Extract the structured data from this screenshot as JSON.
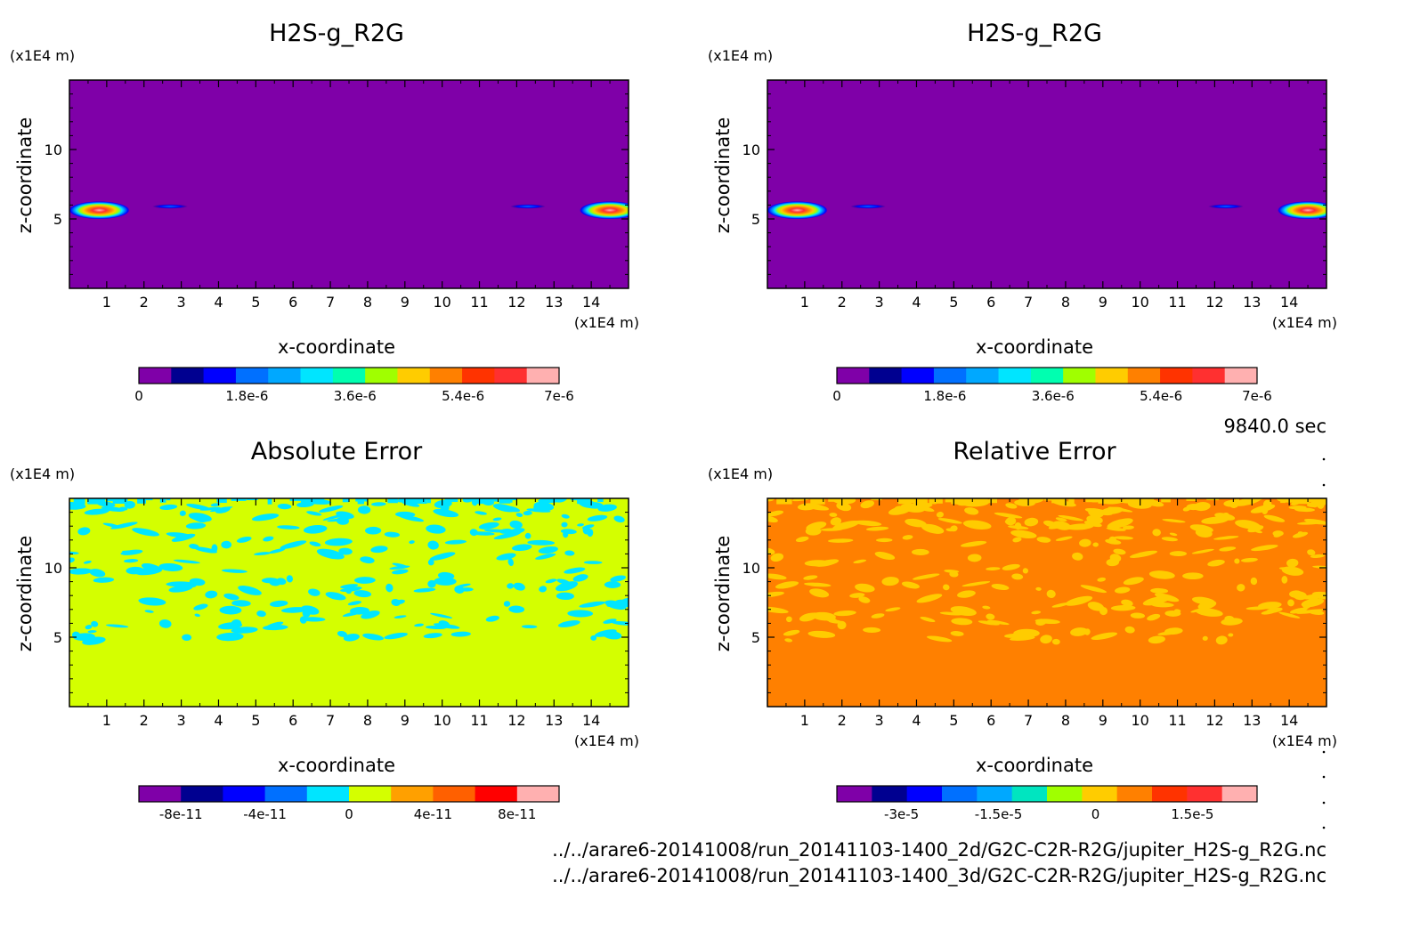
{
  "time_label": "9840.0 sec",
  "files": [
    "../../arare6-20141008/run_20141103-1400_2d/G2C-C2R-R2G/jupiter_H2S-g_R2G.nc",
    "../../arare6-20141008/run_20141103-1400_3d/G2C-C2R-R2G/jupiter_H2S-g_R2G.nc"
  ],
  "colors": {
    "purple": "#7f00a8",
    "mustard": "#d4ff00",
    "orange": "#ff8000",
    "yellow": "#ffcc00",
    "cyan": "#00e5ff"
  },
  "chart_data": [
    {
      "type": "heatmap",
      "title": "H2S-g_R2G",
      "xlabel": "x-coordinate",
      "ylabel": "z-coordinate",
      "x_unit": "(x1E4 m)",
      "y_unit": "(x1E4 m)",
      "xlim": [
        0,
        15
      ],
      "ylim": [
        0,
        15
      ],
      "x_ticks": [
        "1",
        "2",
        "3",
        "4",
        "5",
        "6",
        "7",
        "8",
        "9",
        "10",
        "11",
        "12",
        "13",
        "14"
      ],
      "y_ticks": [
        "5",
        "10"
      ],
      "background_value": 0,
      "features": [
        {
          "x": 0.8,
          "z": 5.5,
          "peak": 7e-06,
          "kind": "blob"
        },
        {
          "x": 14.5,
          "z": 5.5,
          "peak": 7e-06,
          "kind": "blob"
        },
        {
          "x": 2.7,
          "z": 5.9,
          "peak": 1.8e-06,
          "kind": "streak"
        },
        {
          "x": 12.3,
          "z": 5.9,
          "peak": 1.8e-06,
          "kind": "streak"
        }
      ],
      "colorbar": {
        "range": [
          0,
          7e-06
        ],
        "labels": [
          "0",
          "1.8e-6",
          "3.6e-6",
          "5.4e-6",
          "7e-6"
        ],
        "colors": [
          "#7f00a8",
          "#000090",
          "#0000ff",
          "#0070ff",
          "#00a8ff",
          "#00e5ff",
          "#00ffb0",
          "#a0ff00",
          "#ffcc00",
          "#ff8000",
          "#ff3300",
          "#ff3030",
          "#ffb0b0"
        ]
      }
    },
    {
      "type": "heatmap",
      "title": "H2S-g_R2G",
      "xlabel": "x-coordinate",
      "ylabel": "z-coordinate",
      "x_unit": "(x1E4 m)",
      "y_unit": "(x1E4 m)",
      "xlim": [
        0,
        15
      ],
      "ylim": [
        0,
        15
      ],
      "x_ticks": [
        "1",
        "2",
        "3",
        "4",
        "5",
        "6",
        "7",
        "8",
        "9",
        "10",
        "11",
        "12",
        "13",
        "14"
      ],
      "y_ticks": [
        "5",
        "10"
      ],
      "background_value": 0,
      "features": [
        {
          "x": 0.8,
          "z": 5.5,
          "peak": 7e-06,
          "kind": "blob"
        },
        {
          "x": 14.5,
          "z": 5.5,
          "peak": 7e-06,
          "kind": "blob"
        },
        {
          "x": 2.7,
          "z": 5.9,
          "peak": 1.8e-06,
          "kind": "streak"
        },
        {
          "x": 12.3,
          "z": 5.9,
          "peak": 1.8e-06,
          "kind": "streak"
        }
      ],
      "colorbar": {
        "range": [
          0,
          7e-06
        ],
        "labels": [
          "0",
          "1.8e-6",
          "3.6e-6",
          "5.4e-6",
          "7e-6"
        ],
        "colors": [
          "#7f00a8",
          "#000090",
          "#0000ff",
          "#0070ff",
          "#00a8ff",
          "#00e5ff",
          "#00ffb0",
          "#a0ff00",
          "#ffcc00",
          "#ff8000",
          "#ff3300",
          "#ff3030",
          "#ffb0b0"
        ]
      }
    },
    {
      "type": "heatmap",
      "title": "Absolute Error",
      "xlabel": "x-coordinate",
      "ylabel": "z-coordinate",
      "x_unit": "(x1E4 m)",
      "y_unit": "(x1E4 m)",
      "xlim": [
        0,
        15
      ],
      "ylim": [
        0,
        15
      ],
      "x_ticks": [
        "1",
        "2",
        "3",
        "4",
        "5",
        "6",
        "7",
        "8",
        "9",
        "10",
        "11",
        "12",
        "13",
        "14"
      ],
      "y_ticks": [
        "5",
        "10"
      ],
      "background_value": 0,
      "patch_value": -1e-11,
      "patch_zone_z": [
        5,
        15
      ],
      "colorbar": {
        "range": [
          -1e-10,
          1e-10
        ],
        "labels": [
          "-8e-11",
          "-4e-11",
          "0",
          "4e-11",
          "8e-11"
        ],
        "colors": [
          "#7f00a8",
          "#000090",
          "#0000ff",
          "#0070ff",
          "#00e5ff",
          "#d4ff00",
          "#ffa000",
          "#ff6000",
          "#ff0000",
          "#ffb0b0"
        ]
      }
    },
    {
      "type": "heatmap",
      "title": "Relative Error",
      "xlabel": "x-coordinate",
      "ylabel": "z-coordinate",
      "x_unit": "(x1E4 m)",
      "y_unit": "(x1E4 m)",
      "xlim": [
        0,
        15
      ],
      "ylim": [
        0,
        15
      ],
      "x_ticks": [
        "1",
        "2",
        "3",
        "4",
        "5",
        "6",
        "7",
        "8",
        "9",
        "10",
        "11",
        "12",
        "13",
        "14"
      ],
      "y_ticks": [
        "5",
        "10"
      ],
      "background_value": 0,
      "patch_value": -2e-06,
      "patch_zone_z": [
        5,
        15
      ],
      "colorbar": {
        "range": [
          -4e-05,
          2.5e-05
        ],
        "labels": [
          "-3e-5",
          "-1.5e-5",
          "0",
          "1.5e-5"
        ],
        "colors": [
          "#7f00a8",
          "#000090",
          "#0000ff",
          "#0070ff",
          "#00a8ff",
          "#00e5c0",
          "#a0ff00",
          "#ffcc00",
          "#ff8000",
          "#ff3300",
          "#ff3030",
          "#ffb0b0"
        ]
      }
    }
  ]
}
